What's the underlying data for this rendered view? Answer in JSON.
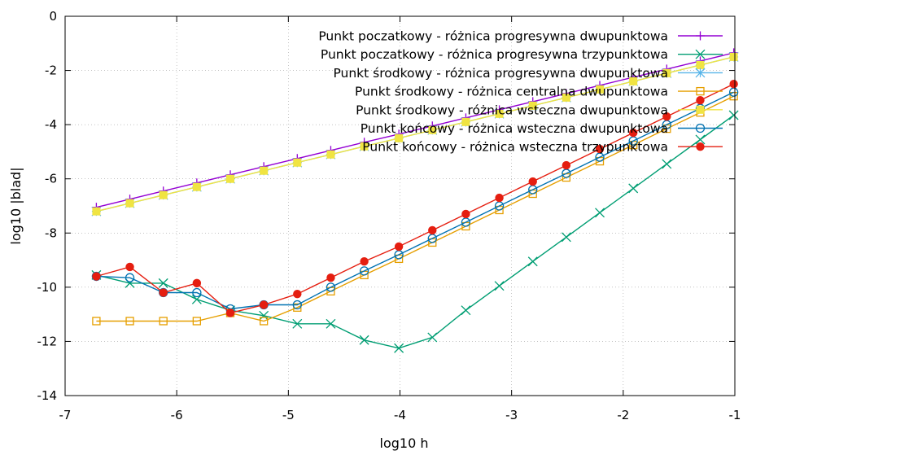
{
  "chart_data": {
    "type": "line",
    "xlabel": "log10 h",
    "ylabel": "log10 |blad|",
    "xlim": [
      -7,
      -1
    ],
    "ylim": [
      -14,
      0
    ],
    "xticks": [
      -7,
      -6,
      -5,
      -4,
      -3,
      -2,
      -1
    ],
    "yticks": [
      0,
      -2,
      -4,
      -6,
      -8,
      -10,
      -12,
      -14
    ],
    "grid": "dotted",
    "legend_position": "top-right",
    "series": [
      {
        "name": "Punkt poczatkowy - różnica progresywna dwupunktowa",
        "color": "#9400d3",
        "marker": "plus",
        "x": [
          -6.72,
          -6.42,
          -6.12,
          -5.82,
          -5.52,
          -5.22,
          -4.92,
          -4.62,
          -4.32,
          -4.01,
          -3.71,
          -3.41,
          -3.11,
          -2.81,
          -2.51,
          -2.21,
          -1.91,
          -1.61,
          -1.31,
          -1.01
        ],
        "y": [
          -7.05,
          -6.75,
          -6.45,
          -6.15,
          -5.85,
          -5.55,
          -5.25,
          -4.95,
          -4.65,
          -4.35,
          -4.05,
          -3.75,
          -3.45,
          -3.15,
          -2.85,
          -2.55,
          -2.25,
          -1.95,
          -1.65,
          -1.35
        ]
      },
      {
        "name": "Punkt poczatkowy - różnica progresywna trzypunktowa",
        "color": "#009e73",
        "marker": "cross",
        "x": [
          -6.72,
          -6.42,
          -6.12,
          -5.82,
          -5.52,
          -5.22,
          -4.92,
          -4.62,
          -4.32,
          -4.01,
          -3.71,
          -3.41,
          -3.11,
          -2.81,
          -2.51,
          -2.21,
          -1.91,
          -1.61,
          -1.31,
          -1.01
        ],
        "y": [
          -9.55,
          -9.85,
          -9.85,
          -10.45,
          -10.85,
          -11.05,
          -11.35,
          -11.35,
          -11.95,
          -12.25,
          -11.85,
          -10.85,
          -9.95,
          -9.05,
          -8.15,
          -7.25,
          -6.35,
          -5.45,
          -4.55,
          -3.65
        ]
      },
      {
        "name": "Punkt środkowy - różnica progresywna dwupunktowa",
        "color": "#56b4e9",
        "marker": "star",
        "x": [
          -6.72,
          -6.42,
          -6.12,
          -5.82,
          -5.52,
          -5.22,
          -4.92,
          -4.62,
          -4.32,
          -4.01,
          -3.71,
          -3.41,
          -3.11,
          -2.81,
          -2.51,
          -2.21,
          -1.91,
          -1.61,
          -1.31,
          -1.01
        ],
        "y": [
          -7.2,
          -6.9,
          -6.6,
          -6.3,
          -6.0,
          -5.7,
          -5.4,
          -5.1,
          -4.8,
          -4.5,
          -4.2,
          -3.9,
          -3.6,
          -3.3,
          -3.0,
          -2.7,
          -2.4,
          -2.1,
          -1.8,
          -1.5
        ]
      },
      {
        "name": "Punkt środkowy - różnica centralna dwupunktowa",
        "color": "#e69f00",
        "marker": "square-open",
        "x": [
          -6.72,
          -6.42,
          -6.12,
          -5.82,
          -5.52,
          -5.22,
          -4.92,
          -4.62,
          -4.32,
          -4.01,
          -3.71,
          -3.41,
          -3.11,
          -2.81,
          -2.51,
          -2.21,
          -1.91,
          -1.61,
          -1.31,
          -1.01
        ],
        "y": [
          -11.25,
          -11.25,
          -11.25,
          -11.25,
          -10.95,
          -11.25,
          -10.75,
          -10.15,
          -9.55,
          -8.95,
          -8.35,
          -7.75,
          -7.15,
          -6.55,
          -5.95,
          -5.35,
          -4.75,
          -4.15,
          -3.55,
          -2.95
        ]
      },
      {
        "name": "Punkt środkowy - różnica wsteczna dwupunktowa",
        "color": "#f0e442",
        "marker": "square-filled",
        "x": [
          -6.72,
          -6.42,
          -6.12,
          -5.82,
          -5.52,
          -5.22,
          -4.92,
          -4.62,
          -4.32,
          -4.01,
          -3.71,
          -3.41,
          -3.11,
          -2.81,
          -2.51,
          -2.21,
          -1.91,
          -1.61,
          -1.31,
          -1.01
        ],
        "y": [
          -7.2,
          -6.9,
          -6.6,
          -6.3,
          -6.0,
          -5.7,
          -5.4,
          -5.1,
          -4.8,
          -4.5,
          -4.2,
          -3.9,
          -3.6,
          -3.3,
          -3.0,
          -2.7,
          -2.4,
          -2.1,
          -1.8,
          -1.5
        ]
      },
      {
        "name": "Punkt końcowy - różnica wsteczna dwupunktowa",
        "color": "#0072b2",
        "marker": "circle-open",
        "x": [
          -6.72,
          -6.42,
          -6.12,
          -5.82,
          -5.52,
          -5.22,
          -4.92,
          -4.62,
          -4.32,
          -4.01,
          -3.71,
          -3.41,
          -3.11,
          -2.81,
          -2.51,
          -2.21,
          -1.91,
          -1.61,
          -1.31,
          -1.01
        ],
        "y": [
          -9.6,
          -9.65,
          -10.2,
          -10.2,
          -10.8,
          -10.65,
          -10.65,
          -10.0,
          -9.4,
          -8.8,
          -8.2,
          -7.6,
          -7.0,
          -6.4,
          -5.8,
          -5.2,
          -4.6,
          -4.0,
          -3.4,
          -2.8
        ]
      },
      {
        "name": "Punkt końcowy - różnica wsteczna trzypunktowa",
        "color": "#e51e10",
        "marker": "circle-filled",
        "x": [
          -6.72,
          -6.42,
          -6.12,
          -5.82,
          -5.52,
          -5.22,
          -4.92,
          -4.62,
          -4.32,
          -4.01,
          -3.71,
          -3.41,
          -3.11,
          -2.81,
          -2.51,
          -2.21,
          -1.91,
          -1.61,
          -1.31,
          -1.01
        ],
        "y": [
          -9.6,
          -9.25,
          -10.2,
          -9.85,
          -10.95,
          -10.65,
          -10.25,
          -9.65,
          -9.05,
          -8.5,
          -7.9,
          -7.3,
          -6.7,
          -6.1,
          -5.5,
          -4.9,
          -4.3,
          -3.7,
          -3.1,
          -2.5
        ]
      }
    ]
  }
}
